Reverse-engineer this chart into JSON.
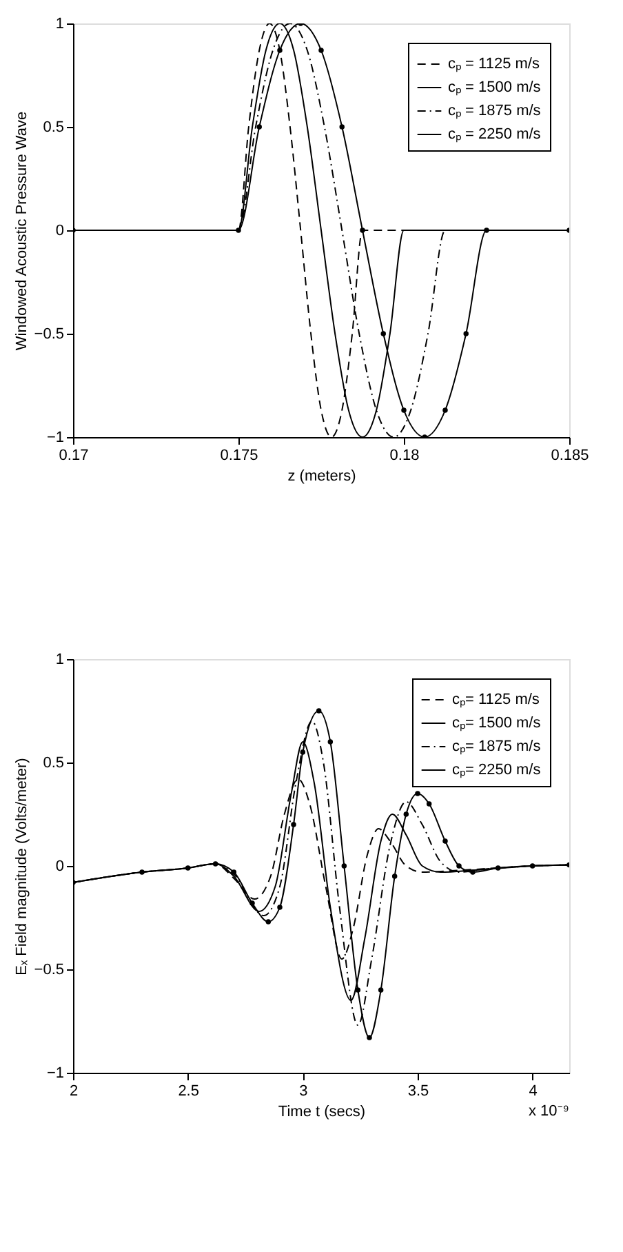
{
  "chart_data": [
    {
      "type": "line",
      "xlabel": "z (meters)",
      "ylabel": "Windowed Acoustic Pressure Wave",
      "xlim": [
        0.17,
        0.185
      ],
      "xticks": [
        0.17,
        0.175,
        0.18,
        0.185
      ],
      "ylim": [
        -1,
        1
      ],
      "yticks": [
        -1,
        -0.5,
        0,
        0.5,
        1
      ],
      "grid": false,
      "legend": "top right",
      "series": [
        {
          "name": "cₚ = 1125 m/s",
          "color": "#000000",
          "line_style": "dashed",
          "marker": "none",
          "x": [
            0.17,
            0.175,
            0.17531,
            0.17563,
            0.17594,
            0.17625,
            0.17656,
            0.17688,
            0.17719,
            0.1775,
            0.17781,
            0.17813,
            0.17844,
            0.17875,
            0.185
          ],
          "values": [
            0,
            0,
            0.5,
            0.87,
            1,
            0.87,
            0.5,
            0,
            -0.5,
            -0.87,
            -1,
            -0.87,
            -0.5,
            0,
            0
          ]
        },
        {
          "name": "cₚ = 1500 m/s",
          "color": "#000000",
          "line_style": "solid",
          "marker": "none",
          "x": [
            0.17,
            0.175,
            0.17542,
            0.17583,
            0.17625,
            0.17667,
            0.17708,
            0.1775,
            0.17792,
            0.17833,
            0.17875,
            0.17917,
            0.17958,
            0.18,
            0.185
          ],
          "values": [
            0,
            0,
            0.5,
            0.87,
            1,
            0.87,
            0.5,
            0,
            -0.5,
            -0.87,
            -1,
            -0.87,
            -0.5,
            0,
            0
          ]
        },
        {
          "name": "cₚ = 1875 m/s",
          "color": "#000000",
          "line_style": "dashdot",
          "marker": "none",
          "x": [
            0.17,
            0.175,
            0.17552,
            0.17604,
            0.17656,
            0.17708,
            0.1776,
            0.17813,
            0.17865,
            0.17917,
            0.17969,
            0.18021,
            0.18073,
            0.18125,
            0.185
          ],
          "values": [
            0,
            0,
            0.5,
            0.87,
            1,
            0.87,
            0.5,
            0,
            -0.5,
            -0.87,
            -1,
            -0.87,
            -0.5,
            0,
            0
          ]
        },
        {
          "name": "cₚ = 2250 m/s",
          "color": "#000000",
          "line_style": "solid",
          "marker": "circle",
          "x": [
            0.17,
            0.175,
            0.17563,
            0.17625,
            0.17688,
            0.1775,
            0.17813,
            0.17875,
            0.17938,
            0.18,
            0.18063,
            0.18125,
            0.18188,
            0.1825,
            0.185
          ],
          "values": [
            0,
            0,
            0.5,
            0.87,
            1,
            0.87,
            0.5,
            0,
            -0.5,
            -0.87,
            -1,
            -0.87,
            -0.5,
            0,
            0
          ]
        }
      ]
    },
    {
      "type": "line",
      "xlabel": "Time t (secs)",
      "ylabel": "Eₓ Field magnitude (Volts/meter)",
      "xlim": [
        2,
        4.16
      ],
      "xticks": [
        2,
        2.5,
        3,
        3.5,
        4
      ],
      "ylim": [
        -1,
        1
      ],
      "yticks": [
        -1,
        -0.5,
        0,
        0.5,
        1
      ],
      "grid": false,
      "legend": "top right",
      "annotations": [
        "x 10⁻⁹"
      ],
      "series": [
        {
          "name": "cₚ= 1125 m/s",
          "color": "#000000",
          "line_style": "dashed",
          "marker": "none",
          "x": [
            2,
            2.3,
            2.5,
            2.62,
            2.7,
            2.79,
            2.86,
            2.92,
            2.98,
            3.03,
            3.1,
            3.17,
            3.22,
            3.28,
            3.33,
            3.38,
            3.45,
            3.52,
            3.7,
            4.0,
            4.16
          ],
          "values": [
            -0.08,
            -0.03,
            -0.01,
            0.01,
            -0.06,
            -0.16,
            -0.05,
            0.25,
            0.42,
            0.3,
            -0.1,
            -0.45,
            -0.3,
            0.05,
            0.18,
            0.12,
            0.0,
            -0.03,
            -0.02,
            0.0,
            0.005
          ]
        },
        {
          "name": "cₚ= 1500 m/s",
          "color": "#000000",
          "line_style": "solid",
          "marker": "none",
          "x": [
            2,
            2.3,
            2.5,
            2.62,
            2.7,
            2.81,
            2.88,
            2.95,
            3.0,
            3.05,
            3.12,
            3.21,
            3.27,
            3.34,
            3.39,
            3.45,
            3.52,
            3.6,
            3.75,
            4.0,
            4.16
          ],
          "values": [
            -0.08,
            -0.03,
            -0.01,
            0.01,
            -0.05,
            -0.22,
            -0.1,
            0.35,
            0.6,
            0.4,
            -0.2,
            -0.65,
            -0.35,
            0.12,
            0.25,
            0.15,
            0.0,
            -0.03,
            -0.02,
            0.0,
            0.005
          ]
        },
        {
          "name": "cₚ= 1875 m/s",
          "color": "#000000",
          "line_style": "dashdot",
          "marker": "none",
          "x": [
            2,
            2.3,
            2.5,
            2.62,
            2.7,
            2.83,
            2.9,
            2.97,
            3.04,
            3.09,
            3.16,
            3.24,
            3.3,
            3.38,
            3.45,
            3.52,
            3.6,
            3.68,
            3.8,
            4.0,
            4.16
          ],
          "values": [
            -0.08,
            -0.03,
            -0.01,
            0.01,
            -0.04,
            -0.24,
            -0.1,
            0.4,
            0.7,
            0.5,
            -0.2,
            -0.77,
            -0.45,
            0.1,
            0.31,
            0.2,
            0.02,
            -0.03,
            -0.015,
            0.0,
            0.005
          ]
        },
        {
          "name": "cₚ= 2250 m/s",
          "color": "#000000",
          "line_style": "solid",
          "marker": "circle",
          "x": [
            2,
            2.3,
            2.5,
            2.62,
            2.7,
            2.78,
            2.85,
            2.9,
            2.96,
            3.0,
            3.07,
            3.12,
            3.18,
            3.24,
            3.29,
            3.34,
            3.4,
            3.45,
            3.5,
            3.55,
            3.62,
            3.68,
            3.74,
            3.85,
            4.0,
            4.16
          ],
          "values": [
            -0.08,
            -0.03,
            -0.01,
            0.01,
            -0.03,
            -0.18,
            -0.27,
            -0.2,
            0.2,
            0.55,
            0.75,
            0.6,
            0.0,
            -0.6,
            -0.83,
            -0.6,
            -0.05,
            0.25,
            0.35,
            0.3,
            0.12,
            0.0,
            -0.03,
            -0.01,
            0.0,
            0.005
          ]
        }
      ]
    }
  ]
}
